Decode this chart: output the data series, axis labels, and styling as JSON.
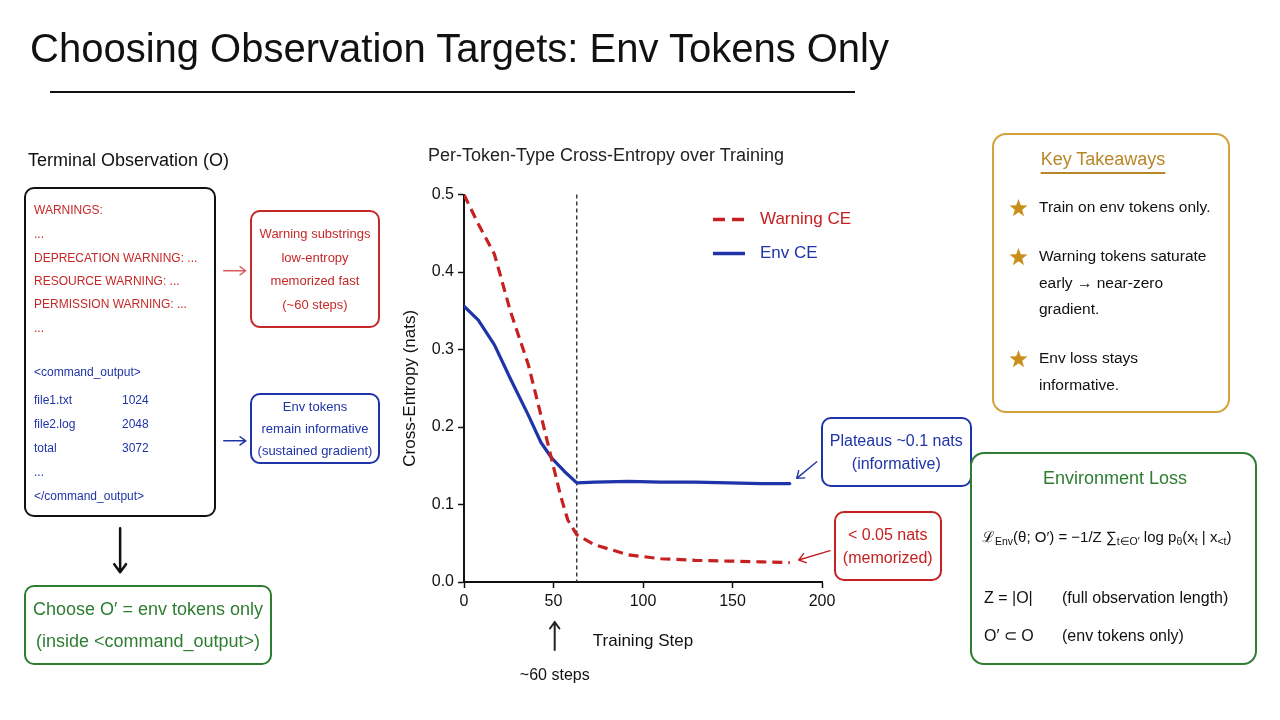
{
  "chart_data": [
    {
      "type": "other",
      "title": "Choosing Observation Targets: Env Tokens Only"
    },
    {
      "type": "other",
      "title": "Terminal Observation (O)",
      "annotations": [
        "WARNINGS:",
        "...",
        "DEPRECATION WARNING: ...",
        "RESOURCE WARNING: ...",
        "PERMISSION WARNING: ...",
        "...",
        "<command_output>",
        "file1.txt",
        "1024",
        "file2.log",
        "2048",
        "total",
        "3072",
        "...",
        "</command_output>",
        "Warning substrings\nlow-entropy\nmemorized fast\n(~60 steps)",
        "Env tokens\nremain informative\n(sustained gradient)",
        "Choose O′ = env tokens only\n(inside <command_output>)"
      ]
    },
    {
      "type": "line",
      "title": "Per-Token-Type Cross-Entropy over Training",
      "xlabel": "Training Step",
      "ylabel": "Cross-Entropy (nats)",
      "xlim": [
        0,
        200
      ],
      "xticks": [
        0,
        50,
        100,
        150,
        200
      ],
      "ylim": [
        0,
        0.5
      ],
      "yticks": [
        {
          "value": 0,
          "label": "0.0"
        },
        0.1,
        0.2,
        0.3,
        0.4,
        0.5
      ],
      "grid": false,
      "legend": "top right",
      "marker": "none",
      "series": [
        {
          "name": "Warning CE",
          "color": "#c62020",
          "line_style": "dashed",
          "x": [
            0,
            8,
            17,
            26,
            36,
            43,
            49,
            54,
            58,
            63,
            73,
            92,
            110,
            129,
            148,
            166,
            182
          ],
          "values": [
            0.5,
            0.462,
            0.423,
            0.349,
            0.28,
            0.215,
            0.158,
            0.111,
            0.08,
            0.061,
            0.048,
            0.035,
            0.03,
            0.028,
            0.027,
            0.026,
            0.025
          ]
        },
        {
          "name": "Env CE",
          "color": "#1f34a8",
          "line_style": "solid",
          "x": [
            0,
            8,
            17,
            26,
            36,
            43,
            49,
            56,
            63,
            73,
            92,
            110,
            129,
            148,
            166,
            182
          ],
          "values": [
            0.356,
            0.338,
            0.306,
            0.262,
            0.215,
            0.18,
            0.16,
            0.143,
            0.128,
            0.129,
            0.13,
            0.129,
            0.129,
            0.128,
            0.127,
            0.127
          ]
        }
      ],
      "ref_lines": [
        {
          "axis": "x",
          "value": 63,
          "label": "~60 steps",
          "color": "#222222",
          "line_style": "dashed"
        }
      ],
      "annotations": [
        {
          "text": "Plateaus ~0.1 nats\n(informative)",
          "x": 182,
          "y": 0.127
        },
        {
          "text": "< 0.05 nats\n(memorized)",
          "x": 182,
          "y": 0.025
        }
      ]
    },
    {
      "type": "other",
      "title": "Key Takeaways",
      "annotations": [
        "Train on env tokens only.",
        "Warning tokens saturate early → near-zero gradient.",
        "Env loss stays informative."
      ]
    },
    {
      "type": "other",
      "title": "Environment Loss",
      "annotations": [
        "ℒ$_{Env}$(θ; O′) = −1/Z ∑$_{t∈O′}$ log p$_{θ}$(x$_{t}$ | x$_{<t}$)",
        "Z = |O|",
        "(full observation length)",
        "O′ ⊂ O",
        "(env tokens only)"
      ]
    }
  ]
}
